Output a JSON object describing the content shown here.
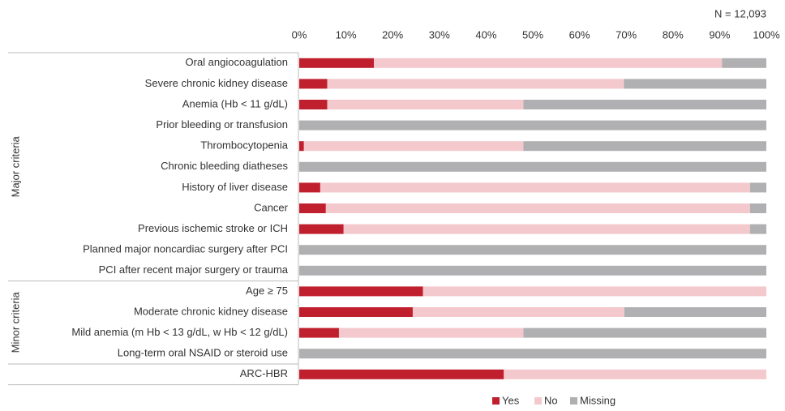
{
  "chart_data": {
    "type": "stacked-barh",
    "annotation": "N = 12,093",
    "categories": [
      "Oral angiocoagulation",
      "Severe chronic kidney disease",
      "Anemia (Hb < 11 g/dL)",
      "Prior bleeding or transfusion",
      "Thrombocytopenia",
      "Chronic bleeding diatheses",
      "History of liver disease",
      "Cancer",
      "Previous ischemic stroke or ICH",
      "Planned major noncardiac surgery after PCI",
      "PCI after recent major surgery or trauma",
      "Age ≥ 75",
      "Moderate chronic kidney disease",
      "Mild anemia (m Hb < 13 g/dL, w Hb < 12 g/dL)",
      "Long-term oral NSAID or steroid use",
      "ARC-HBR"
    ],
    "groups": [
      {
        "label": "Major criteria",
        "size": 11
      },
      {
        "label": "Minor criteria",
        "size": 4
      }
    ],
    "series": [
      {
        "name": "Yes",
        "color": "#c0202e",
        "values": [
          16,
          6,
          6,
          0,
          1,
          0,
          4.5,
          5.7,
          9.5,
          0,
          0,
          26.5,
          24.3,
          8.5,
          0,
          43.8
        ]
      },
      {
        "name": "No",
        "color": "#f4c9cd",
        "values": [
          74.5,
          63.5,
          42,
          0,
          47,
          0,
          92,
          90.8,
          87,
          0,
          0,
          73.5,
          45.3,
          39.5,
          0,
          56.2
        ]
      },
      {
        "name": "Missing",
        "color": "#b0b0b2",
        "values": [
          9.5,
          30.5,
          52,
          100,
          52,
          100,
          3.5,
          3.5,
          3.5,
          100,
          100,
          0,
          30.4,
          52,
          100,
          0
        ]
      }
    ],
    "xlim": [
      0,
      100
    ],
    "xticks": [
      {
        "value": 0,
        "label": "0%"
      },
      {
        "value": 10,
        "label": "10%"
      },
      {
        "value": 20,
        "label": "20%"
      },
      {
        "value": 30,
        "label": "30%"
      },
      {
        "value": 40,
        "label": "40%"
      },
      {
        "value": 50,
        "label": "50%"
      },
      {
        "value": 60,
        "label": "60%"
      },
      {
        "value": 70,
        "label": "70%"
      },
      {
        "value": 80,
        "label": "80%"
      },
      {
        "value": 90,
        "label": "90%"
      },
      {
        "value": 100,
        "label": "100%"
      }
    ],
    "legend": "bottom"
  }
}
